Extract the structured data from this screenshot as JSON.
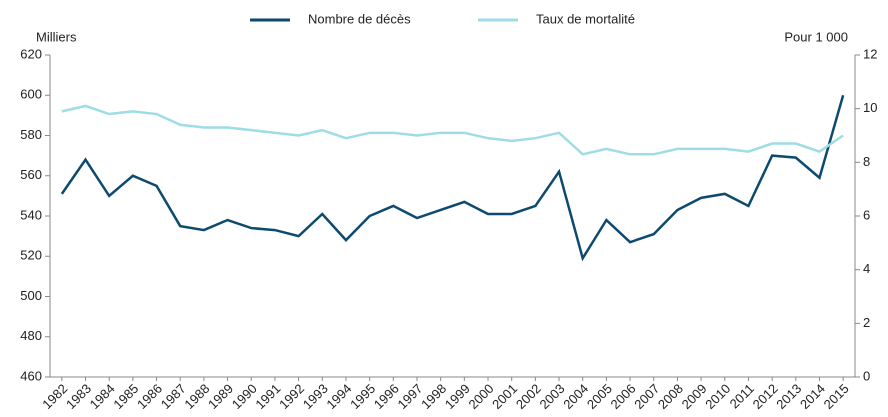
{
  "chart_data": {
    "type": "line",
    "y_label": "Milliers",
    "y2_label": "Pour 1 000",
    "categories": [
      "1982",
      "1983",
      "1984",
      "1985",
      "1986",
      "1987",
      "1988",
      "1989",
      "1990",
      "1991",
      "1992",
      "1993",
      "1994",
      "1995",
      "1996",
      "1997",
      "1998",
      "1999",
      "2000",
      "2001",
      "2002",
      "2003",
      "2004",
      "2005",
      "2006",
      "2007",
      "2008",
      "2009",
      "2010",
      "2011",
      "2012",
      "2013",
      "2014",
      "2015"
    ],
    "series": [
      {
        "name": "Nombre de décès",
        "color": "#0d4a70",
        "values": [
          551,
          568,
          550,
          560,
          555,
          535,
          533,
          538,
          534,
          533,
          530,
          541,
          528,
          540,
          545,
          539,
          543,
          547,
          541,
          541,
          545,
          562,
          519,
          538,
          527,
          531,
          543,
          549,
          551,
          545,
          570,
          569,
          559,
          600
        ]
      },
      {
        "name": "Taux de mortalité",
        "color": "#9edce6",
        "axis": "y2",
        "values": [
          9.9,
          10.1,
          9.8,
          9.9,
          9.8,
          9.4,
          9.3,
          9.3,
          9.2,
          9.1,
          9.0,
          9.2,
          8.9,
          9.1,
          9.1,
          9.0,
          9.1,
          9.1,
          8.9,
          8.8,
          8.9,
          9.1,
          8.3,
          8.5,
          8.3,
          8.3,
          8.5,
          8.5,
          8.5,
          8.4,
          8.7,
          8.7,
          8.4,
          9.0
        ]
      }
    ],
    "ylim": [
      460,
      620
    ],
    "yticks": [
      460,
      480,
      500,
      520,
      540,
      560,
      580,
      600,
      620
    ],
    "y2lim": [
      0,
      12
    ],
    "y2ticks": [
      0,
      2,
      4,
      6,
      8,
      10,
      12
    ],
    "grid": false
  }
}
